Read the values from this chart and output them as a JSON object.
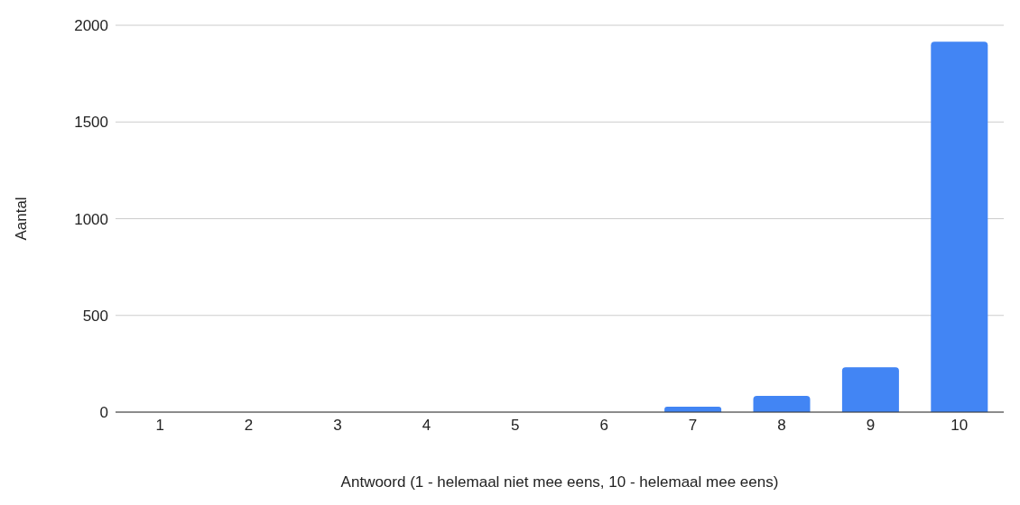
{
  "chart_data": {
    "type": "bar",
    "xlabel": "Antwoord (1 - helemaal niet mee eens, 10 - helemaal mee eens)",
    "ylabel": "Aantal",
    "categories": [
      "1",
      "2",
      "3",
      "4",
      "5",
      "6",
      "7",
      "8",
      "9",
      "10"
    ],
    "values": [
      0,
      0,
      0,
      0,
      0,
      0,
      28,
      84,
      232,
      1915
    ],
    "color": "#4285f4",
    "ylim": [
      0,
      2000
    ],
    "yticks": [
      0,
      500,
      1000,
      1500,
      2000
    ],
    "grid": "y"
  }
}
